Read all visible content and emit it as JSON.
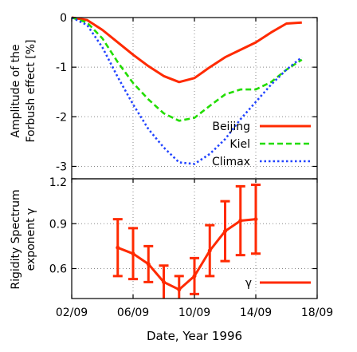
{
  "chart_data": [
    {
      "type": "line",
      "ylabel": "Amplitude of the\nForbush effect [%]",
      "ylim": [
        -3.25,
        0
      ],
      "yticks": [
        "0",
        "-1",
        "-2",
        "-3"
      ],
      "ytick_values": [
        0,
        -1,
        -2,
        -3
      ],
      "x": [
        "02/09",
        "03/09",
        "04/09",
        "05/09",
        "06/09",
        "07/09",
        "08/09",
        "09/09",
        "10/09",
        "11/09",
        "12/09",
        "13/09",
        "14/09",
        "15/09",
        "16/09",
        "17/09"
      ],
      "series": [
        {
          "name": "Beijing",
          "color": "#ff2a00",
          "style": "solid",
          "values": [
            0,
            -0.05,
            -0.25,
            -0.5,
            -0.75,
            -0.98,
            -1.18,
            -1.3,
            -1.22,
            -1.0,
            -0.8,
            -0.65,
            -0.5,
            -0.3,
            -0.12,
            -0.1
          ]
        },
        {
          "name": "Kiel",
          "color": "#22dd00",
          "style": "dashed",
          "values": [
            0,
            -0.1,
            -0.42,
            -0.9,
            -1.32,
            -1.65,
            -1.93,
            -2.08,
            -2.02,
            -1.78,
            -1.55,
            -1.45,
            -1.45,
            -1.3,
            -1.05,
            -0.85
          ]
        },
        {
          "name": "Climax",
          "color": "#2244ff",
          "style": "dotted",
          "values": [
            0,
            -0.15,
            -0.6,
            -1.2,
            -1.75,
            -2.25,
            -2.62,
            -2.92,
            -2.95,
            -2.75,
            -2.45,
            -2.05,
            -1.7,
            -1.35,
            -1.05,
            -0.8
          ]
        }
      ],
      "grid": true,
      "legend": "bottom-right"
    },
    {
      "type": "line",
      "ylabel": "Rigidity Spectrum\nexponent γ",
      "xlabel": "Date, Year 1996",
      "ylim": [
        0.4,
        1.2
      ],
      "yticks": [
        "1.2",
        "0.9",
        "0.6"
      ],
      "ytick_values": [
        1.2,
        0.9,
        0.6
      ],
      "xticks": [
        "02/09",
        "06/09",
        "10/09",
        "14/09",
        "18/09"
      ],
      "xtick_values": [
        0,
        4,
        8,
        12,
        16
      ],
      "series": [
        {
          "name": "γ",
          "color": "#ff2a00",
          "x": [
            3,
            4,
            5,
            6,
            7,
            8,
            9,
            10,
            11,
            12
          ],
          "values": [
            0.74,
            0.7,
            0.63,
            0.51,
            0.46,
            0.55,
            0.72,
            0.85,
            0.92,
            0.93
          ],
          "err": [
            0.19,
            0.17,
            0.12,
            0.11,
            0.09,
            0.12,
            0.17,
            0.2,
            0.23,
            0.23
          ]
        }
      ],
      "grid": true,
      "legend": "bottom-right"
    }
  ]
}
